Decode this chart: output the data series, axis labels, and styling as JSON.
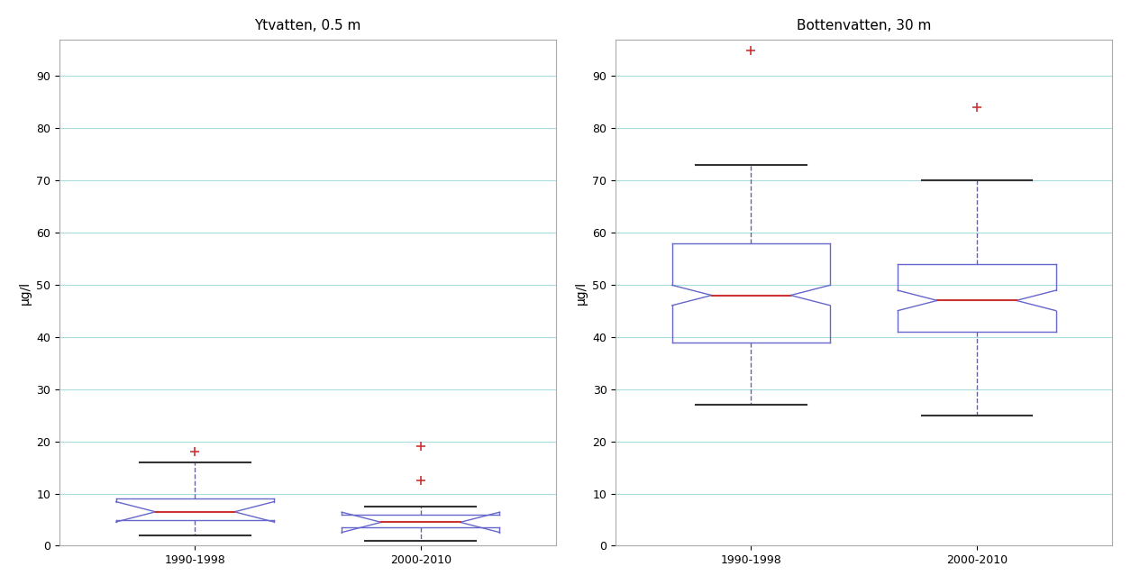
{
  "left_title": "Ytvatten, 0.5 m",
  "right_title": "Bottenvatten, 30 m",
  "ylabel": "μg/l",
  "categories": [
    "1990-1998",
    "2000-2010"
  ],
  "left": {
    "1990-1998": {
      "whislo": 2.0,
      "q1": 5.0,
      "med": 6.5,
      "q3": 9.0,
      "whishi": 16.0,
      "fliers": [
        18.0
      ]
    },
    "2000-2010": {
      "whislo": 1.0,
      "q1": 3.5,
      "med": 4.5,
      "q3": 6.0,
      "whishi": 7.5,
      "fliers": [
        12.5,
        19.0
      ]
    }
  },
  "right": {
    "1990-1998": {
      "whislo": 27.0,
      "q1": 39.0,
      "med": 48.0,
      "q3": 58.0,
      "whishi": 73.0,
      "fliers": [
        95.0
      ]
    },
    "2000-2010": {
      "whislo": 25.0,
      "q1": 41.0,
      "med": 47.0,
      "q3": 54.0,
      "whishi": 70.0,
      "fliers": [
        84.0
      ]
    }
  },
  "ylim_left": [
    0,
    97
  ],
  "ylim_right": [
    0,
    97
  ],
  "box_color": "#6666cc",
  "median_color": "#cc3333",
  "whisker_color": "#666699",
  "flier_color": "#cc3333",
  "background_color": "#ffffff",
  "grid_color": "#aadddd",
  "notch": true,
  "box_width": 0.35
}
